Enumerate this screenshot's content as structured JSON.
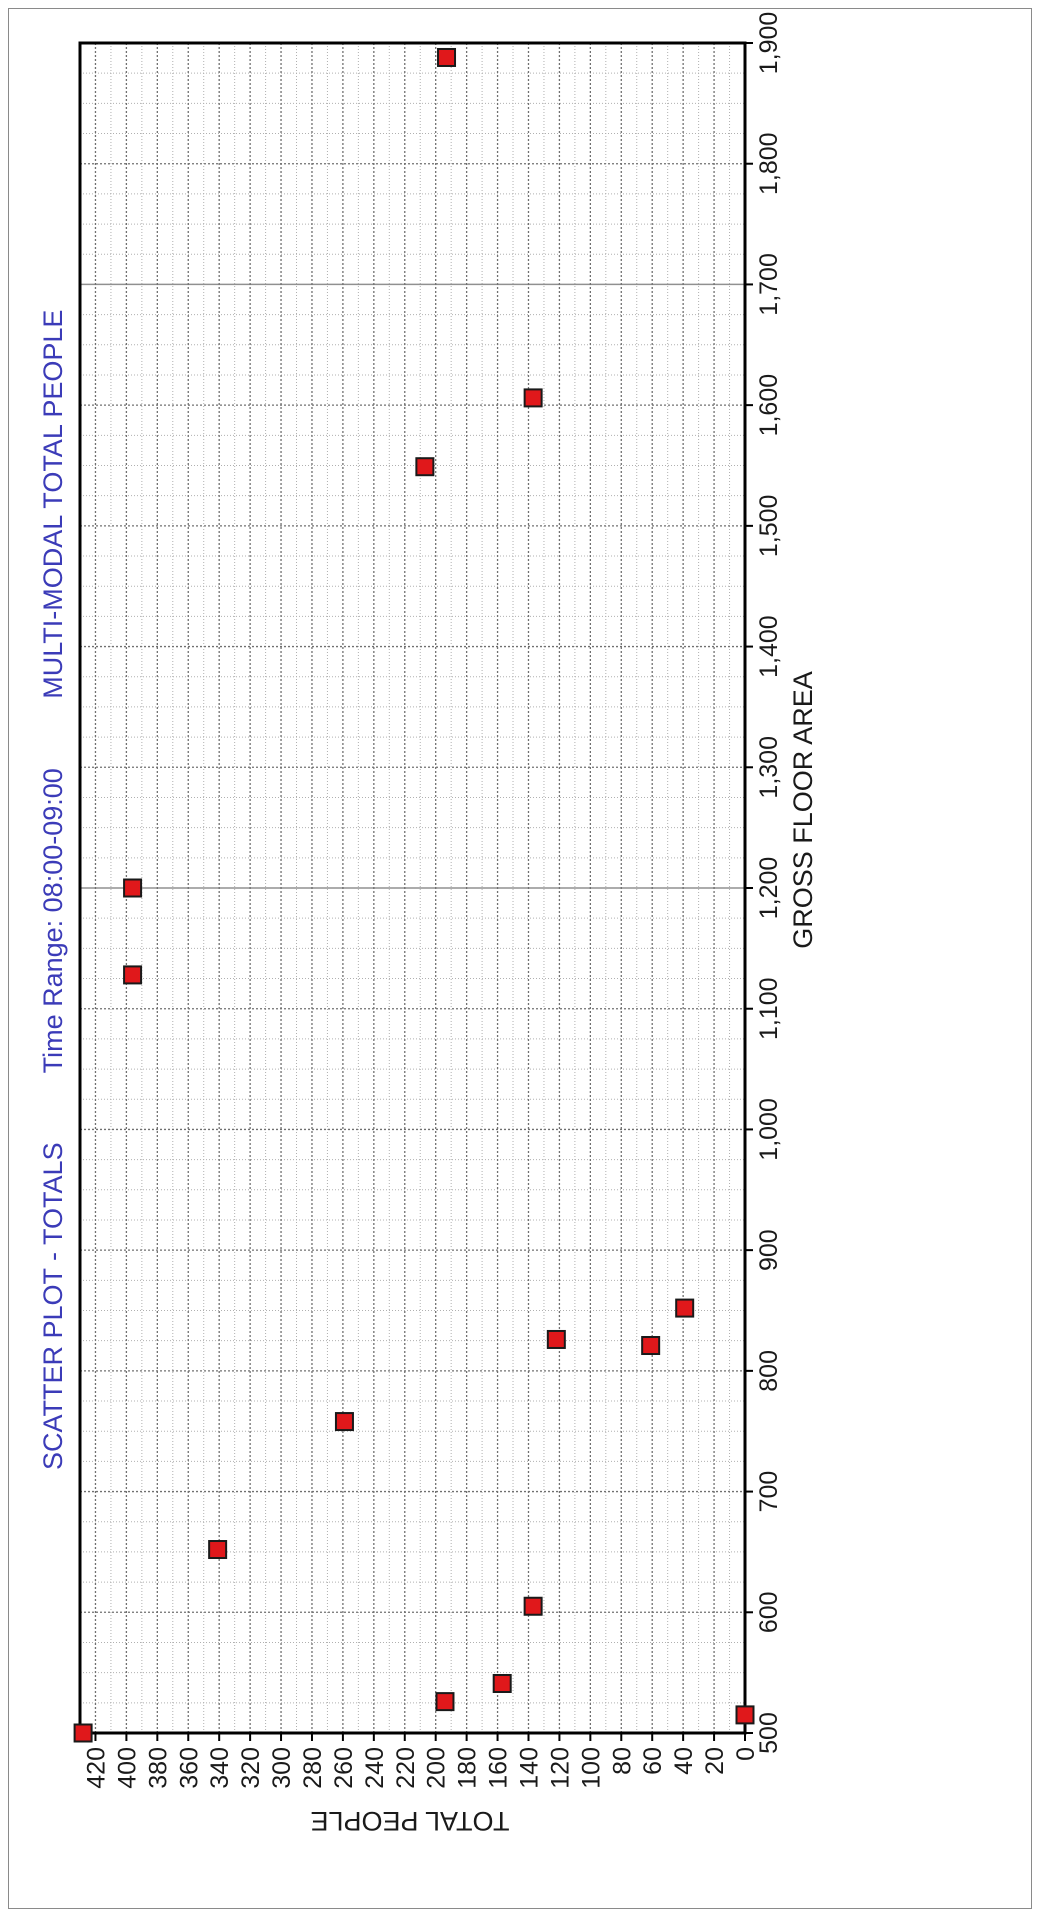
{
  "chart_data": {
    "type": "scatter",
    "title": "SCATTER PLOT - TOTALS",
    "subtitle_time": "Time Range: 08:00-09:00",
    "subtitle_mode": "MULTI-MODAL  TOTAL PEOPLE",
    "xlabel": "GROSS FLOOR AREA",
    "ylabel": "TOTAL PEOPLE",
    "xlim": [
      500,
      1900
    ],
    "ylim": [
      0,
      430
    ],
    "x_ticks": [
      500,
      600,
      700,
      800,
      900,
      1000,
      1100,
      1200,
      1300,
      1400,
      1500,
      1600,
      1700,
      1800,
      1900
    ],
    "x_tick_labels": [
      "500",
      "600",
      "700",
      "800",
      "900",
      "1,000",
      "1,100",
      "1,200",
      "1,300",
      "1,400",
      "1,500",
      "1,600",
      "1,700",
      "1,800",
      "1,900"
    ],
    "y_ticks": [
      0,
      20,
      40,
      60,
      80,
      100,
      120,
      140,
      160,
      180,
      200,
      220,
      240,
      260,
      280,
      300,
      320,
      340,
      360,
      380,
      400,
      420
    ],
    "y_tick_labels": [
      "0",
      "20",
      "40",
      "60",
      "80",
      "100",
      "120",
      "140",
      "160",
      "180",
      "200",
      "220",
      "240",
      "260",
      "280",
      "300",
      "320",
      "340",
      "360",
      "380",
      "400",
      "420"
    ],
    "grid": true,
    "orientation": "rotated 90 degrees clockwise",
    "series": [
      {
        "marker_color": "#e0181b",
        "points": [
          {
            "x": 500,
            "y": 428
          },
          {
            "x": 515,
            "y": 0
          },
          {
            "x": 526,
            "y": 194
          },
          {
            "x": 541,
            "y": 157
          },
          {
            "x": 605,
            "y": 137
          },
          {
            "x": 652,
            "y": 341
          },
          {
            "x": 758,
            "y": 259
          },
          {
            "x": 821,
            "y": 61
          },
          {
            "x": 826,
            "y": 122
          },
          {
            "x": 852,
            "y": 39
          },
          {
            "x": 1128,
            "y": 396
          },
          {
            "x": 1200,
            "y": 396
          },
          {
            "x": 1549,
            "y": 207
          },
          {
            "x": 1606,
            "y": 137
          },
          {
            "x": 1888,
            "y": 193
          }
        ]
      }
    ]
  },
  "colors": {
    "title": "#3b3bb8",
    "axis_text": "#1a1a1a",
    "grid_dotted": "#707070",
    "grid_solid": "#909090",
    "marker_fill": "#e0181b",
    "marker_stroke": "#1a1a1a"
  }
}
